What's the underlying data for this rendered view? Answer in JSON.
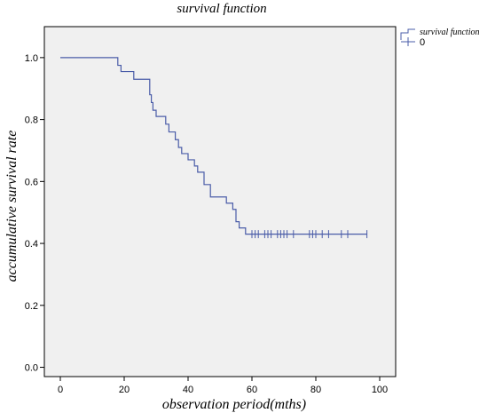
{
  "chart_data": {
    "type": "line",
    "title": "survival function",
    "xlabel": "observation period(mths)",
    "ylabel": "accumulative survival rate",
    "xlim": [
      -5,
      105
    ],
    "ylim": [
      -0.03,
      1.1
    ],
    "x_ticks": [
      "0",
      "20",
      "40",
      "60",
      "80",
      "100"
    ],
    "y_ticks": [
      "0.0",
      "0.2",
      "0.4",
      "0.6",
      "0.8",
      "1.0"
    ],
    "grid": false,
    "legend": {
      "title": "survival function",
      "position": "top-right",
      "entries": [
        "0"
      ]
    },
    "colors": {
      "line": "#4a5ca8",
      "plot_background": "#f0f0f0"
    },
    "series": [
      {
        "name": "0",
        "step_points": [
          [
            0,
            1.0
          ],
          [
            18,
            1.0
          ],
          [
            18,
            0.975
          ],
          [
            19,
            0.975
          ],
          [
            19,
            0.955
          ],
          [
            23,
            0.955
          ],
          [
            23,
            0.93
          ],
          [
            28,
            0.93
          ],
          [
            28,
            0.88
          ],
          [
            28.5,
            0.88
          ],
          [
            28.5,
            0.855
          ],
          [
            29,
            0.855
          ],
          [
            29,
            0.83
          ],
          [
            30,
            0.83
          ],
          [
            30,
            0.81
          ],
          [
            33,
            0.81
          ],
          [
            33,
            0.785
          ],
          [
            34,
            0.785
          ],
          [
            34,
            0.76
          ],
          [
            36,
            0.76
          ],
          [
            36,
            0.735
          ],
          [
            37,
            0.735
          ],
          [
            37,
            0.71
          ],
          [
            38,
            0.71
          ],
          [
            38,
            0.69
          ],
          [
            40,
            0.69
          ],
          [
            40,
            0.67
          ],
          [
            42,
            0.67
          ],
          [
            42,
            0.65
          ],
          [
            43,
            0.65
          ],
          [
            43,
            0.63
          ],
          [
            45,
            0.63
          ],
          [
            45,
            0.59
          ],
          [
            47,
            0.59
          ],
          [
            47,
            0.55
          ],
          [
            52,
            0.55
          ],
          [
            52,
            0.53
          ],
          [
            54,
            0.53
          ],
          [
            54,
            0.51
          ],
          [
            55,
            0.51
          ],
          [
            55,
            0.47
          ],
          [
            56,
            0.47
          ],
          [
            56,
            0.45
          ],
          [
            58,
            0.45
          ],
          [
            58,
            0.43
          ],
          [
            96,
            0.43
          ]
        ],
        "censored_x": [
          60,
          61,
          62,
          64,
          65,
          66,
          68,
          69,
          70,
          71,
          73,
          78,
          79,
          80,
          82,
          84,
          88,
          90,
          96
        ],
        "censored_y": 0.43
      }
    ]
  }
}
